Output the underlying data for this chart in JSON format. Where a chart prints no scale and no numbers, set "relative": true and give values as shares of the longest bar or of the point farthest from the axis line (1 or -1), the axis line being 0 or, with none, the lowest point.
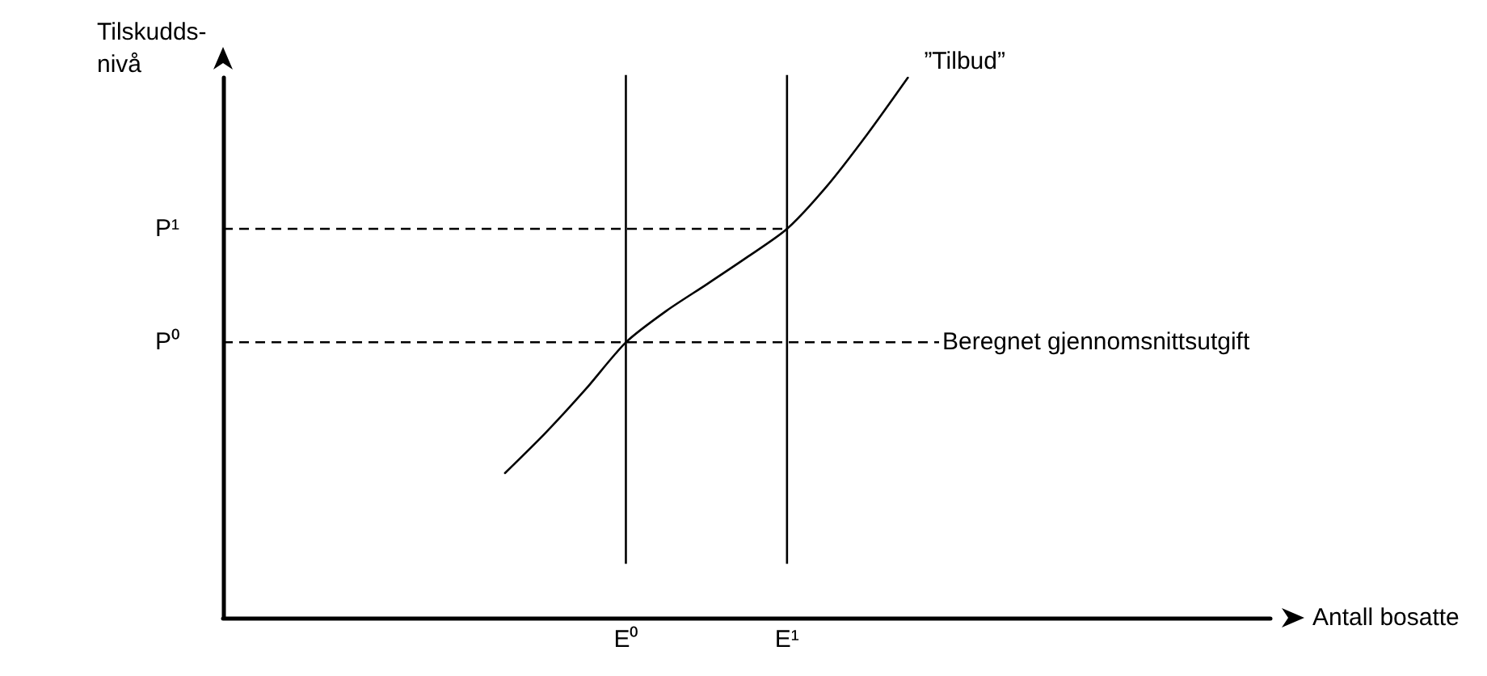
{
  "chart_data": {
    "type": "line",
    "relative": true,
    "xlabel": "Antall bosatte",
    "ylabel": "Tilskudds-nivå",
    "tick_labels": "x",
    "grid": false,
    "legend": false,
    "marker": "none",
    "line_style": "solid",
    "categories": [
      null,
      null,
      null,
      null,
      null,
      null,
      null,
      null,
      null,
      null,
      "E⁰",
      null,
      null,
      null,
      "E¹",
      null,
      null,
      null,
      null,
      null,
      null,
      null,
      null,
      null,
      null,
      null,
      null
    ],
    "series": [
      {
        "name": "”Tilbud”",
        "color": "#000000",
        "values": [
          null,
          null,
          null,
          null,
          null,
          null,
          null,
          0.268,
          0.342,
          0.423,
          0.51,
          0.568,
          0.617,
          0.667,
          0.72,
          0.8,
          0.896,
          1,
          null,
          null,
          null,
          null,
          null,
          null,
          null,
          null,
          null
        ]
      }
    ],
    "ref_lines": [
      {
        "axis": "x",
        "value": "E⁰",
        "line_style": "solid"
      },
      {
        "axis": "x",
        "value": "E¹",
        "line_style": "solid"
      },
      {
        "axis": "y",
        "value": 0.72,
        "label": "P¹",
        "line_style": "dashed"
      },
      {
        "axis": "y",
        "value": 0.51,
        "label": "P⁰",
        "line_style": "dashed"
      }
    ],
    "annotations": [
      "Beregnet gjennomsnittsutgift"
    ]
  }
}
